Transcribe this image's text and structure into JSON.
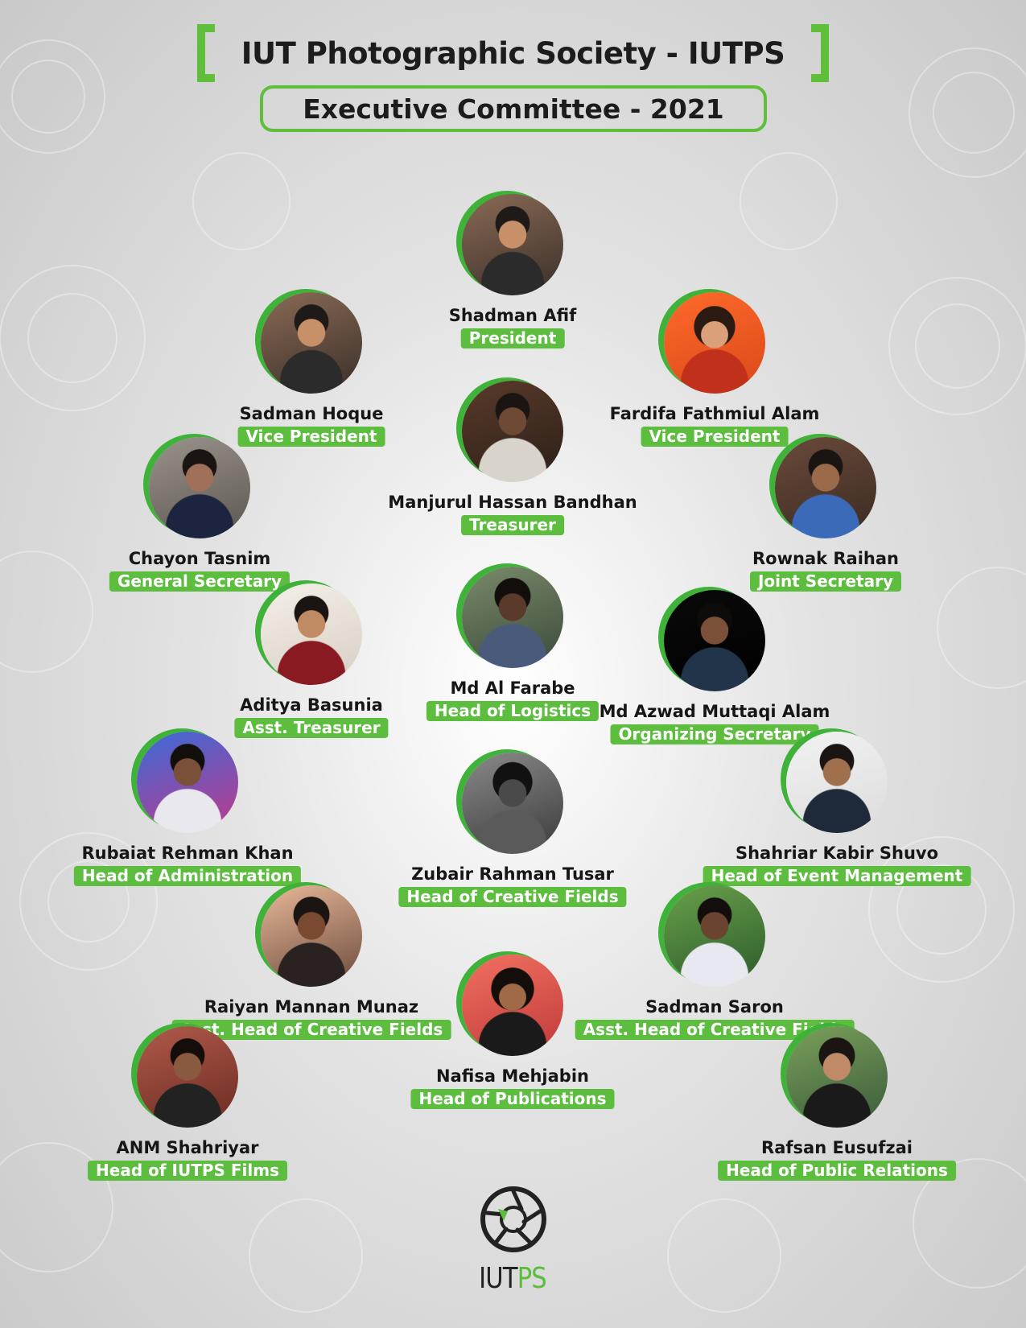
{
  "header": {
    "title": "IUT Photographic Society - IUTPS",
    "subtitle": "Executive Committee - 2021"
  },
  "colors": {
    "accent_green": "#5cbd3e",
    "text_dark": "#161616",
    "background": "#d9d9d9"
  },
  "members": [
    {
      "name": "Shadman Afif",
      "role": "President"
    },
    {
      "name": "Sadman Hoque",
      "role": "Vice President"
    },
    {
      "name": "Fardifa Fathmiul Alam",
      "role": "Vice President"
    },
    {
      "name": "Manjurul Hassan Bandhan",
      "role": "Treasurer"
    },
    {
      "name": "Chayon Tasnim",
      "role": "General Secretary"
    },
    {
      "name": "Rownak Raihan",
      "role": "Joint Secretary"
    },
    {
      "name": "Aditya Basunia",
      "role": "Asst. Treasurer"
    },
    {
      "name": "Md Al Farabe",
      "role": "Head of Logistics"
    },
    {
      "name": "Md Azwad Muttaqi Alam",
      "role": "Organizing Secretary"
    },
    {
      "name": "Rubaiat Rehman Khan",
      "role": "Head of Administration"
    },
    {
      "name": "Zubair Rahman Tusar",
      "role": "Head of Creative Fields"
    },
    {
      "name": "Shahriar Kabir Shuvo",
      "role": "Head of Event Management"
    },
    {
      "name": "Raiyan Mannan Munaz",
      "role": "Asst. Head of Creative Fields"
    },
    {
      "name": "Sadman Saron",
      "role": "Asst. Head of Creative Fields"
    },
    {
      "name": "Nafisa Mehjabin",
      "role": "Head of Publications"
    },
    {
      "name": "ANM Shahriyar",
      "role": "Head of IUTPS Films"
    },
    {
      "name": "Rafsan Eusufzai",
      "role": "Head of Public Relations"
    }
  ],
  "logo": {
    "text_primary": "IUT",
    "text_accent": "PS",
    "icon": "camera-aperture-icon"
  }
}
